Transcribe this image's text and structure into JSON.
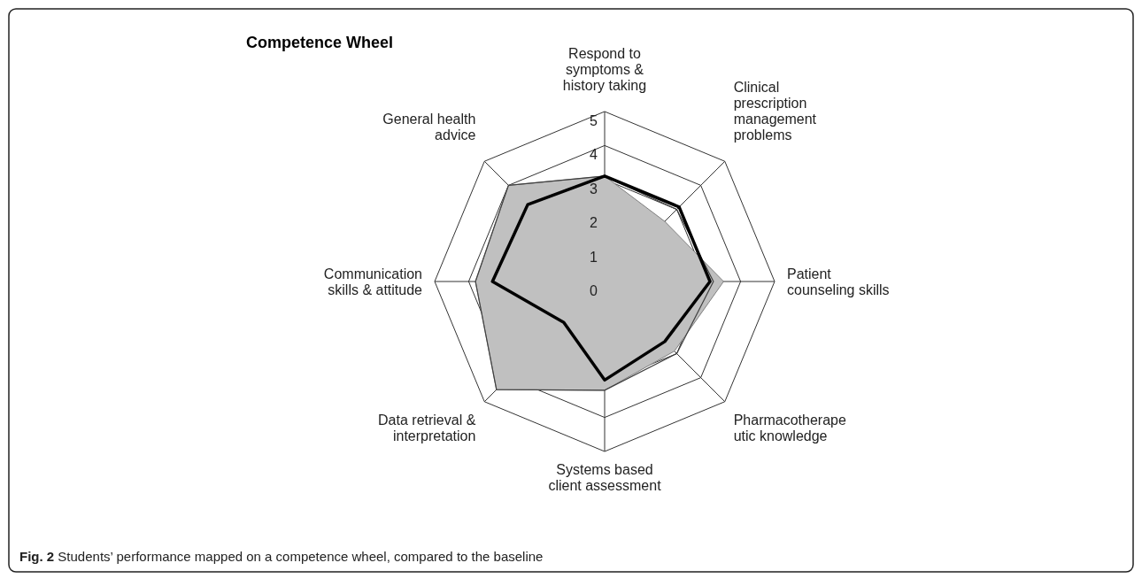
{
  "chart_data": {
    "type": "radar",
    "title": "Competence Wheel",
    "categories": [
      "Respond to\nsymptoms &\nhistory taking",
      "Clinical\nprescription\nmanagement\nproblems",
      "Patient\ncounseling skills",
      "Pharmacotherape\nutic knowledge",
      "Systems based\nclient assessment",
      "Data retrieval &\ninterpretation",
      "Communication\nskills & attitude",
      "General health\nadvice"
    ],
    "series": [
      {
        "type": "area",
        "color": "#c0c0c0",
        "values": [
          3.1,
          2.5,
          3.5,
          2.9,
          3.2,
          4.5,
          3.8,
          4.0
        ]
      },
      {
        "color": "#404040",
        "values": [
          3.1,
          3.0,
          3.2,
          3.0,
          3.2,
          4.5,
          3.8,
          4.0
        ]
      },
      {
        "color": "#000000",
        "values": [
          3.1,
          3.1,
          3.1,
          2.5,
          2.9,
          1.7,
          3.3,
          3.2
        ]
      }
    ],
    "ylim": [
      0,
      5
    ],
    "yticks": [
      0,
      1,
      2,
      3,
      4,
      5
    ],
    "grid": true,
    "legend": false,
    "annotations": [
      "Fig. 2 Students’ performance mapped on a competence wheel, compared to the baseline"
    ]
  }
}
